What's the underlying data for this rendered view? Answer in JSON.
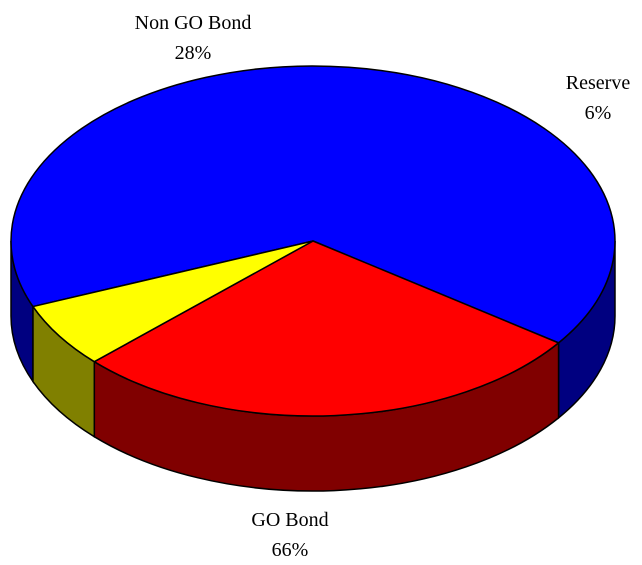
{
  "chart_data": {
    "type": "pie",
    "title": "",
    "slices": [
      {
        "label": "GO Bond",
        "value": 66,
        "value_label": "66%",
        "color": "#0000ff",
        "side_color": "#000080"
      },
      {
        "label": "Non GO Bond",
        "value": 28,
        "value_label": "28%",
        "color": "#ff0000",
        "side_color": "#800000"
      },
      {
        "label": "Reserve",
        "value": 6,
        "value_label": "6%",
        "color": "#ffff00",
        "side_color": "#808000"
      }
    ]
  }
}
